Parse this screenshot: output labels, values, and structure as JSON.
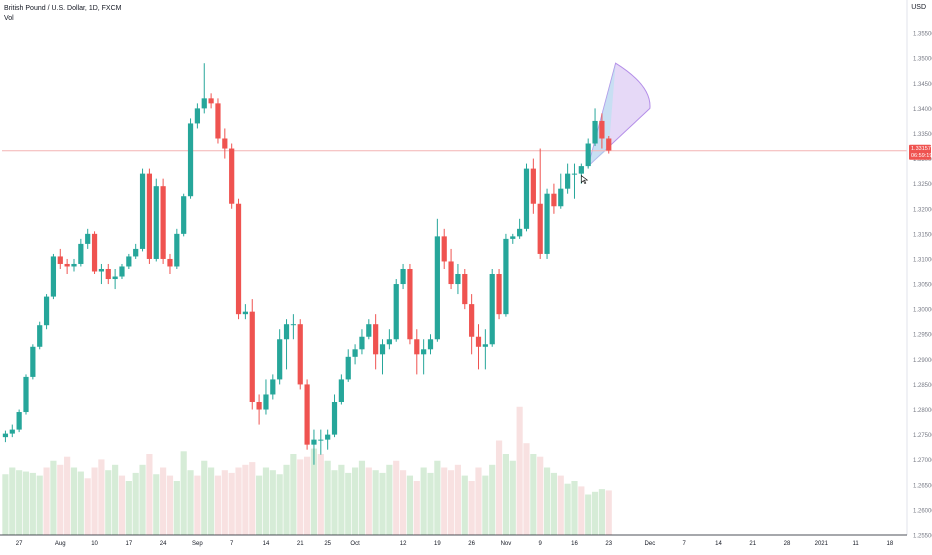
{
  "header": {
    "symbol_line": "British Pound / U.S. Dollar, 1D, FXCM",
    "indicator": "Vol"
  },
  "currency": "USD",
  "price_badge": {
    "price": "1.33157",
    "countdown": "06:59:19",
    "color": "#ef5350"
  },
  "colors": {
    "up": "#26a69a",
    "down": "#ef5350",
    "vol_up": "#c8e6c9",
    "vol_down": "#f6d7d7",
    "projection_fill": "#d9c4f2",
    "projection_stroke": "#b48ee8",
    "price_line": "#f4b3b3"
  },
  "chart_data": {
    "type": "candlestick",
    "title": "British Pound / U.S. Dollar, 1D, FXCM",
    "y_axis": {
      "side": "right",
      "ylim": [
        1.255,
        1.36
      ],
      "ticks": [
        "1.25500",
        "1.26000",
        "1.26500",
        "1.27000",
        "1.27500",
        "1.28000",
        "1.28500",
        "1.29000",
        "1.29500",
        "1.30000",
        "1.30500",
        "1.31000",
        "1.31500",
        "1.32000",
        "1.32500",
        "1.33000",
        "1.33500",
        "1.34000",
        "1.34500",
        "1.35000",
        "1.35500"
      ]
    },
    "x_axis": {
      "ticks": [
        {
          "label": "27",
          "i": 2
        },
        {
          "label": "Aug",
          "i": 8
        },
        {
          "label": "10",
          "i": 13
        },
        {
          "label": "17",
          "i": 18
        },
        {
          "label": "24",
          "i": 23
        },
        {
          "label": "Sep",
          "i": 28
        },
        {
          "label": "7",
          "i": 33
        },
        {
          "label": "14",
          "i": 38
        },
        {
          "label": "21",
          "i": 43
        },
        {
          "label": "25",
          "i": 47
        },
        {
          "label": "Oct",
          "i": 51
        },
        {
          "label": "12",
          "i": 58
        },
        {
          "label": "19",
          "i": 63
        },
        {
          "label": "26",
          "i": 68
        },
        {
          "label": "Nov",
          "i": 73
        },
        {
          "label": "9",
          "i": 78
        },
        {
          "label": "16",
          "i": 83
        },
        {
          "label": "23",
          "i": 88
        },
        {
          "label": "Dec",
          "i": 94
        },
        {
          "label": "7",
          "i": 99
        },
        {
          "label": "14",
          "i": 104
        },
        {
          "label": "21",
          "i": 109
        },
        {
          "label": "28",
          "i": 114
        },
        {
          "label": "2021",
          "i": 119
        },
        {
          "label": "11",
          "i": 124
        },
        {
          "label": "18",
          "i": 129
        }
      ],
      "total_slots": 132
    },
    "candles": [
      [
        1.2745,
        1.2758,
        1.2735,
        1.2752
      ],
      [
        1.2752,
        1.277,
        1.2745,
        1.276
      ],
      [
        1.276,
        1.28,
        1.2755,
        1.2795
      ],
      [
        1.2795,
        1.287,
        1.279,
        1.2865
      ],
      [
        1.2865,
        1.293,
        1.286,
        1.2925
      ],
      [
        1.2925,
        1.2975,
        1.292,
        1.2968
      ],
      [
        1.2968,
        1.303,
        1.296,
        1.3025
      ],
      [
        1.3025,
        1.311,
        1.302,
        1.3105
      ],
      [
        1.3105,
        1.312,
        1.308,
        1.309
      ],
      [
        1.309,
        1.31,
        1.307,
        1.3085
      ],
      [
        1.3085,
        1.31,
        1.3075,
        1.309
      ],
      [
        1.309,
        1.314,
        1.3085,
        1.313
      ],
      [
        1.313,
        1.316,
        1.312,
        1.315
      ],
      [
        1.315,
        1.3155,
        1.307,
        1.3075
      ],
      [
        1.3075,
        1.309,
        1.305,
        1.308
      ],
      [
        1.308,
        1.309,
        1.305,
        1.306
      ],
      [
        1.306,
        1.308,
        1.304,
        1.3065
      ],
      [
        1.3065,
        1.309,
        1.306,
        1.3085
      ],
      [
        1.3085,
        1.311,
        1.308,
        1.3105
      ],
      [
        1.3105,
        1.313,
        1.31,
        1.312
      ],
      [
        1.312,
        1.328,
        1.3115,
        1.327
      ],
      [
        1.327,
        1.328,
        1.309,
        1.31
      ],
      [
        1.31,
        1.326,
        1.3095,
        1.3245
      ],
      [
        1.3245,
        1.326,
        1.309,
        1.31
      ],
      [
        1.31,
        1.311,
        1.307,
        1.3085
      ],
      [
        1.3085,
        1.316,
        1.308,
        1.315
      ],
      [
        1.315,
        1.323,
        1.3145,
        1.3225
      ],
      [
        1.3225,
        1.338,
        1.322,
        1.337
      ],
      [
        1.337,
        1.341,
        1.336,
        1.34
      ],
      [
        1.34,
        1.349,
        1.339,
        1.342
      ],
      [
        1.342,
        1.343,
        1.34,
        1.341
      ],
      [
        1.341,
        1.342,
        1.333,
        1.334
      ],
      [
        1.334,
        1.336,
        1.33,
        1.332
      ],
      [
        1.332,
        1.333,
        1.32,
        1.321
      ],
      [
        1.321,
        1.322,
        1.298,
        1.299
      ],
      [
        1.299,
        1.301,
        1.298,
        1.2995
      ],
      [
        1.2995,
        1.302,
        1.28,
        1.2815
      ],
      [
        1.2815,
        1.283,
        1.277,
        1.28
      ],
      [
        1.28,
        1.286,
        1.279,
        1.283
      ],
      [
        1.283,
        1.287,
        1.282,
        1.286
      ],
      [
        1.286,
        1.296,
        1.285,
        1.294
      ],
      [
        1.294,
        1.298,
        1.288,
        1.297
      ],
      [
        1.297,
        1.299,
        1.294,
        1.297
      ],
      [
        1.297,
        1.298,
        1.284,
        1.285
      ],
      [
        1.285,
        1.286,
        1.272,
        1.273
      ],
      [
        1.273,
        1.276,
        1.269,
        1.274
      ],
      [
        1.274,
        1.276,
        1.271,
        1.274
      ],
      [
        1.274,
        1.276,
        1.272,
        1.275
      ],
      [
        1.275,
        1.283,
        1.2745,
        1.2815
      ],
      [
        1.2815,
        1.287,
        1.281,
        1.286
      ],
      [
        1.286,
        1.292,
        1.2855,
        1.2905
      ],
      [
        1.2905,
        1.293,
        1.289,
        1.292
      ],
      [
        1.292,
        1.296,
        1.291,
        1.2945
      ],
      [
        1.2945,
        1.298,
        1.294,
        1.297
      ],
      [
        1.297,
        1.299,
        1.288,
        1.291
      ],
      [
        1.291,
        1.294,
        1.287,
        1.293
      ],
      [
        1.293,
        1.296,
        1.292,
        1.294
      ],
      [
        1.294,
        1.306,
        1.2935,
        1.305
      ],
      [
        1.305,
        1.309,
        1.304,
        1.308
      ],
      [
        1.308,
        1.309,
        1.293,
        1.294
      ],
      [
        1.294,
        1.296,
        1.287,
        1.291
      ],
      [
        1.291,
        1.294,
        1.287,
        1.292
      ],
      [
        1.292,
        1.295,
        1.291,
        1.294
      ],
      [
        1.294,
        1.318,
        1.2935,
        1.3145
      ],
      [
        1.3145,
        1.316,
        1.308,
        1.3095
      ],
      [
        1.3095,
        1.312,
        1.304,
        1.305
      ],
      [
        1.305,
        1.309,
        1.303,
        1.307
      ],
      [
        1.307,
        1.308,
        1.3,
        1.301
      ],
      [
        1.301,
        1.303,
        1.291,
        1.2945
      ],
      [
        1.2945,
        1.297,
        1.288,
        1.2925
      ],
      [
        1.2925,
        1.296,
        1.288,
        1.293
      ],
      [
        1.293,
        1.308,
        1.2925,
        1.307
      ],
      [
        1.307,
        1.308,
        1.298,
        1.299
      ],
      [
        1.299,
        1.315,
        1.2985,
        1.314
      ],
      [
        1.314,
        1.315,
        1.313,
        1.3145
      ],
      [
        1.3145,
        1.318,
        1.314,
        1.316
      ],
      [
        1.316,
        1.329,
        1.3155,
        1.328
      ],
      [
        1.328,
        1.33,
        1.319,
        1.321
      ],
      [
        1.321,
        1.332,
        1.31,
        1.311
      ],
      [
        1.311,
        1.324,
        1.31,
        1.323
      ],
      [
        1.323,
        1.325,
        1.319,
        1.3205
      ],
      [
        1.3205,
        1.327,
        1.32,
        1.324
      ],
      [
        1.324,
        1.329,
        1.323,
        1.327
      ],
      [
        1.327,
        1.329,
        1.322,
        1.327
      ],
      [
        1.327,
        1.329,
        1.325,
        1.3285
      ],
      [
        1.3285,
        1.334,
        1.328,
        1.333
      ],
      [
        1.333,
        1.34,
        1.3325,
        1.3375
      ],
      [
        1.3375,
        1.339,
        1.332,
        1.334
      ],
      [
        1.334,
        1.3345,
        1.331,
        1.3316
      ]
    ],
    "volume": [
      [
        0.45,
        1
      ],
      [
        0.5,
        1
      ],
      [
        0.48,
        1
      ],
      [
        0.47,
        1
      ],
      [
        0.46,
        1
      ],
      [
        0.44,
        1
      ],
      [
        0.5,
        0
      ],
      [
        0.55,
        1
      ],
      [
        0.52,
        0
      ],
      [
        0.58,
        0
      ],
      [
        0.5,
        1
      ],
      [
        0.47,
        1
      ],
      [
        0.42,
        0
      ],
      [
        0.5,
        0
      ],
      [
        0.56,
        0
      ],
      [
        0.48,
        1
      ],
      [
        0.52,
        1
      ],
      [
        0.44,
        0
      ],
      [
        0.4,
        1
      ],
      [
        0.46,
        1
      ],
      [
        0.52,
        1
      ],
      [
        0.6,
        0
      ],
      [
        0.45,
        1
      ],
      [
        0.5,
        0
      ],
      [
        0.44,
        0
      ],
      [
        0.4,
        1
      ],
      [
        0.62,
        1
      ],
      [
        0.48,
        1
      ],
      [
        0.44,
        0
      ],
      [
        0.55,
        1
      ],
      [
        0.5,
        1
      ],
      [
        0.44,
        0
      ],
      [
        0.48,
        0
      ],
      [
        0.46,
        0
      ],
      [
        0.5,
        0
      ],
      [
        0.52,
        0
      ],
      [
        0.54,
        0
      ],
      [
        0.44,
        1
      ],
      [
        0.5,
        1
      ],
      [
        0.48,
        1
      ],
      [
        0.45,
        1
      ],
      [
        0.52,
        1
      ],
      [
        0.6,
        1
      ],
      [
        0.56,
        0
      ],
      [
        0.58,
        0
      ],
      [
        0.64,
        1
      ],
      [
        0.6,
        0
      ],
      [
        0.55,
        1
      ],
      [
        0.48,
        1
      ],
      [
        0.52,
        1
      ],
      [
        0.46,
        1
      ],
      [
        0.5,
        1
      ],
      [
        0.55,
        1
      ],
      [
        0.5,
        0
      ],
      [
        0.48,
        1
      ],
      [
        0.46,
        1
      ],
      [
        0.52,
        1
      ],
      [
        0.55,
        0
      ],
      [
        0.48,
        0
      ],
      [
        0.44,
        1
      ],
      [
        0.4,
        0
      ],
      [
        0.5,
        1
      ],
      [
        0.46,
        1
      ],
      [
        0.55,
        1
      ],
      [
        0.5,
        0
      ],
      [
        0.48,
        0
      ],
      [
        0.52,
        0
      ],
      [
        0.44,
        1
      ],
      [
        0.4,
        0
      ],
      [
        0.5,
        0
      ],
      [
        0.44,
        1
      ],
      [
        0.52,
        1
      ],
      [
        0.7,
        0
      ],
      [
        0.6,
        1
      ],
      [
        0.55,
        1
      ],
      [
        0.95,
        0
      ],
      [
        0.68,
        0
      ],
      [
        0.6,
        1
      ],
      [
        0.58,
        0
      ],
      [
        0.5,
        1
      ],
      [
        0.46,
        1
      ],
      [
        0.44,
        0
      ],
      [
        0.38,
        1
      ],
      [
        0.4,
        1
      ],
      [
        0.36,
        0
      ],
      [
        0.3,
        1
      ],
      [
        0.32,
        1
      ],
      [
        0.34,
        1
      ],
      [
        0.33,
        0
      ]
    ],
    "current_price": 1.33157,
    "projection": {
      "apex_index": 85,
      "apex_price": 1.3285,
      "tip_index": 94,
      "tip_price": 1.34,
      "upper_index": 89,
      "upper_price": 1.349,
      "lower_index": 88,
      "lower_price": 1.332
    },
    "cursor": {
      "index": 84,
      "price": 1.3266
    }
  }
}
